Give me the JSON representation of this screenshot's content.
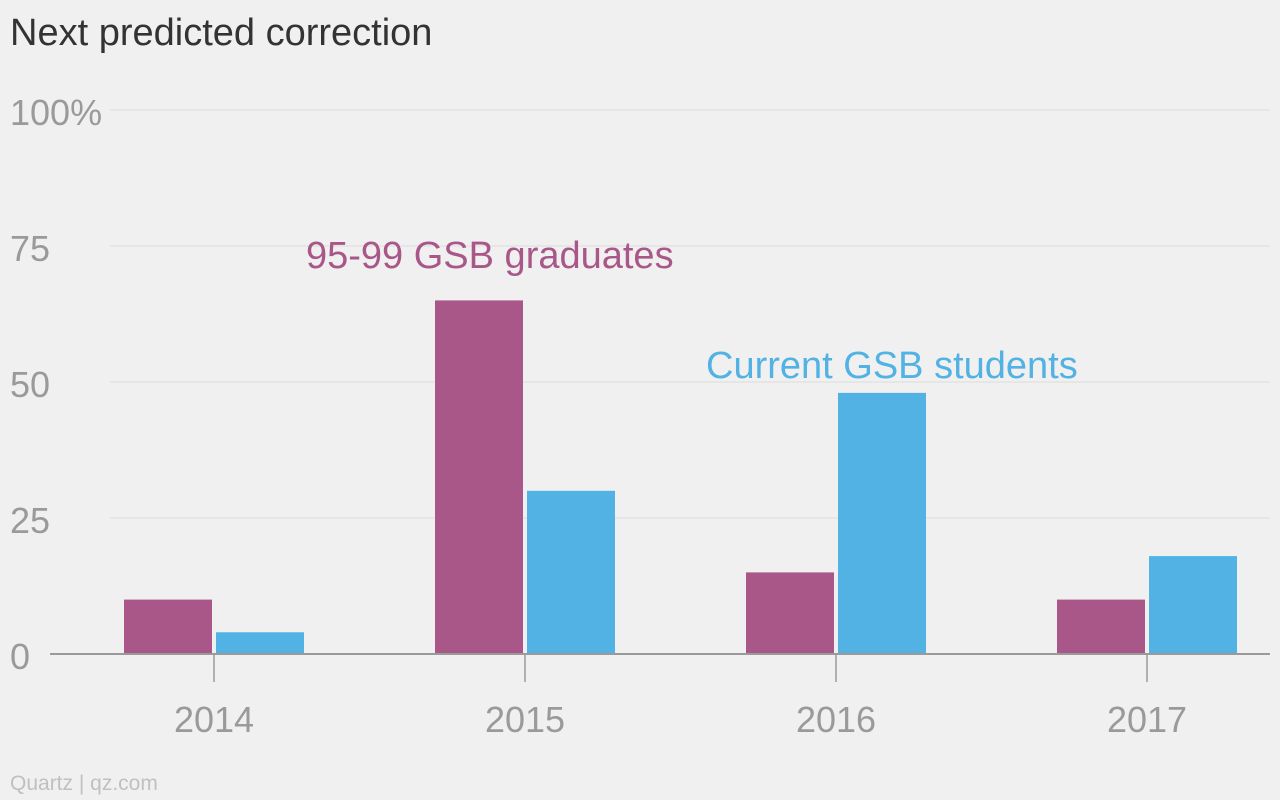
{
  "chart_data": {
    "type": "bar",
    "title": "Next predicted correction",
    "xlabel": "",
    "ylabel": "",
    "categories": [
      "2014",
      "2015",
      "2016",
      "2017"
    ],
    "series": [
      {
        "name": "95-99 GSB graduates",
        "values": [
          10,
          65,
          15,
          10
        ],
        "color": "#a95788"
      },
      {
        "name": "Current GSB students",
        "values": [
          4,
          30,
          48,
          18
        ],
        "color": "#52b2e4"
      }
    ],
    "ylim": [
      0,
      100
    ],
    "yticks": [
      {
        "value": 0,
        "label": "0"
      },
      {
        "value": 25,
        "label": "25"
      },
      {
        "value": 50,
        "label": "50"
      },
      {
        "value": 75,
        "label": "75"
      },
      {
        "value": 100,
        "label": "100%"
      }
    ],
    "grid": true,
    "legend": "inline-labels"
  },
  "footer": {
    "source": "Quartz | qz.com"
  },
  "colors": {
    "background": "#f0f0f0",
    "gridline": "#e2e2e2",
    "axis": "#9a9a9a",
    "tick_label": "#9a9a9a",
    "title": "#333333"
  }
}
